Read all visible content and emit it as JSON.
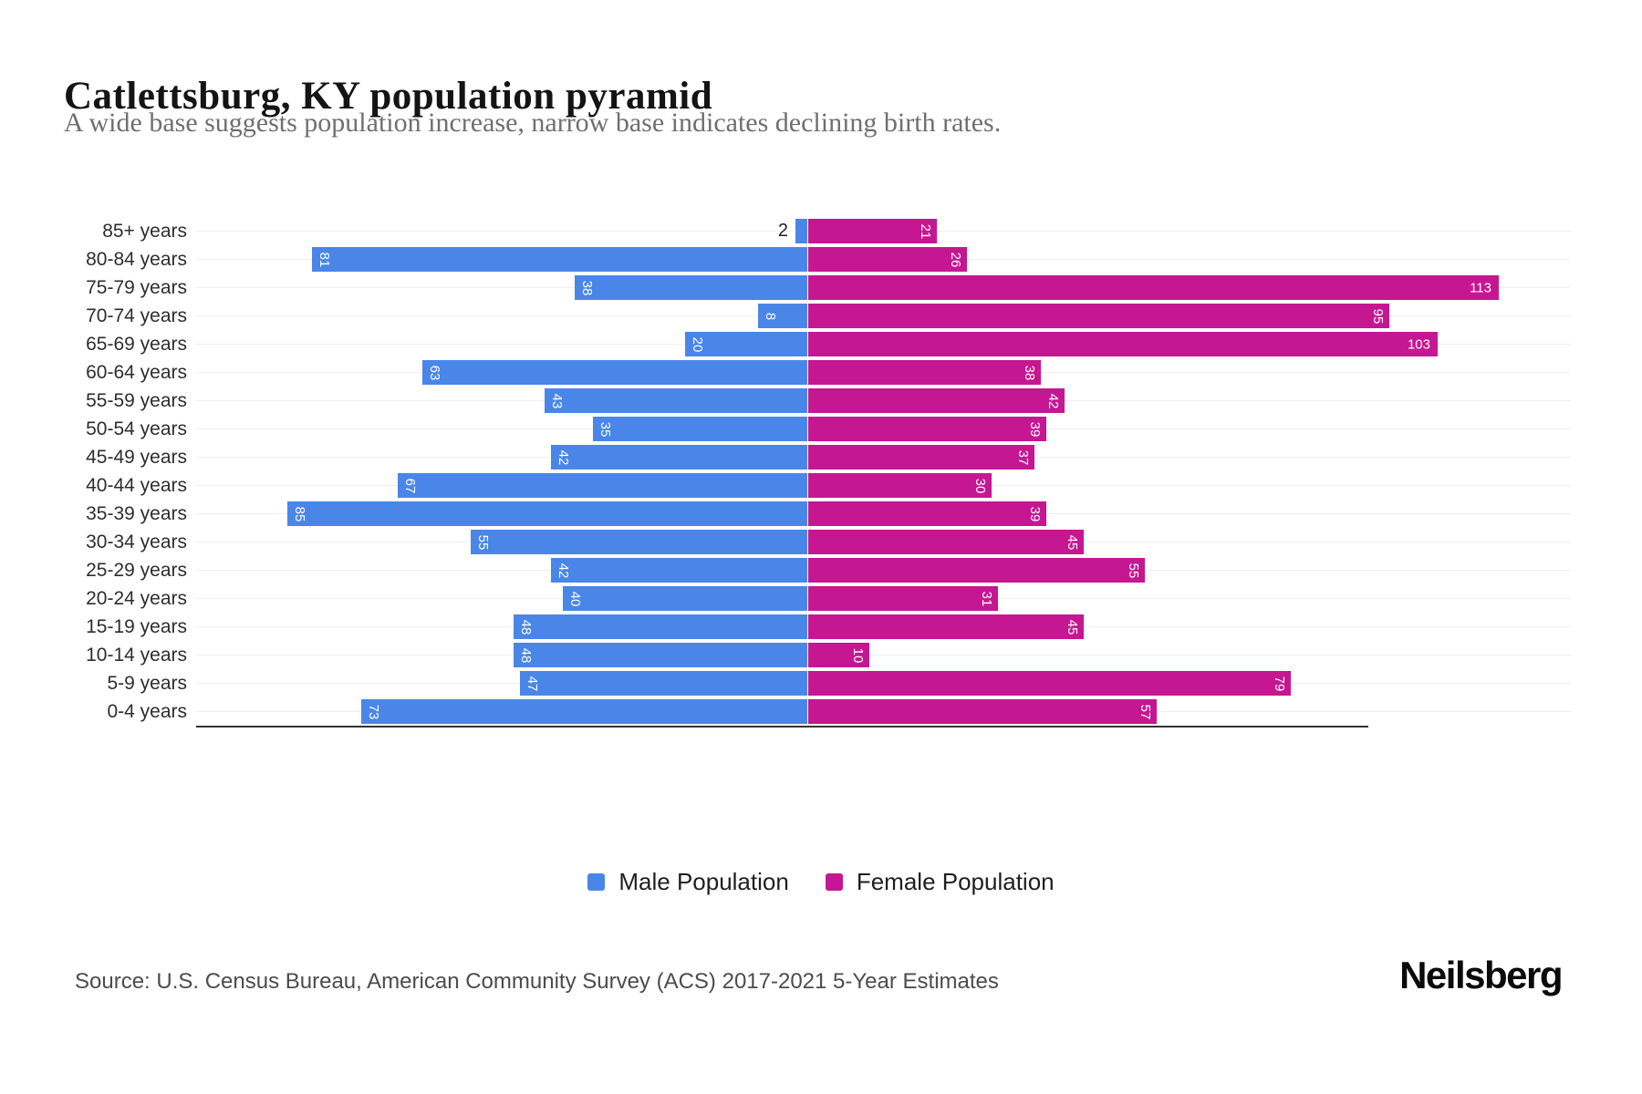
{
  "header": {
    "title": "Catlettsburg, KY population pyramid",
    "subtitle": "A wide base suggests population increase, narrow base indicates declining birth rates."
  },
  "colors": {
    "male": "#4a86e8",
    "female": "#c51792",
    "grid": "#efefef",
    "axis": "#333333",
    "value_label_inside": "#ffffff",
    "value_label_outside": "#222222"
  },
  "chart_data": {
    "type": "bar",
    "variant": "population-pyramid",
    "orientation": "horizontal",
    "categories": [
      "85+ years",
      "80-84 years",
      "75-79 years",
      "70-74 years",
      "65-69 years",
      "60-64 years",
      "55-59 years",
      "50-54 years",
      "45-49 years",
      "40-44 years",
      "35-39 years",
      "30-34 years",
      "25-29 years",
      "20-24 years",
      "15-19 years",
      "10-14 years",
      "5-9 years",
      "0-4 years"
    ],
    "series": [
      {
        "name": "Male Population",
        "side": "left",
        "color": "#4a86e8",
        "values": [
          2,
          81,
          38,
          8,
          20,
          63,
          43,
          35,
          42,
          67,
          85,
          55,
          42,
          40,
          48,
          48,
          47,
          73
        ]
      },
      {
        "name": "Female Population",
        "side": "right",
        "color": "#c51792",
        "values": [
          21,
          26,
          113,
          95,
          103,
          38,
          42,
          39,
          37,
          30,
          39,
          45,
          55,
          31,
          45,
          10,
          79,
          57
        ]
      }
    ],
    "value_labels": "on-bars",
    "grid": "horizontal-row-lines",
    "legend_position": "bottom-center",
    "axis_max": 124
  },
  "legend": {
    "male_label": "Male Population",
    "female_label": "Female Population"
  },
  "footer": {
    "source": "Source: U.S. Census Bureau, American Community Survey (ACS) 2017-2021 5-Year Estimates",
    "brand": "Neilsberg"
  }
}
